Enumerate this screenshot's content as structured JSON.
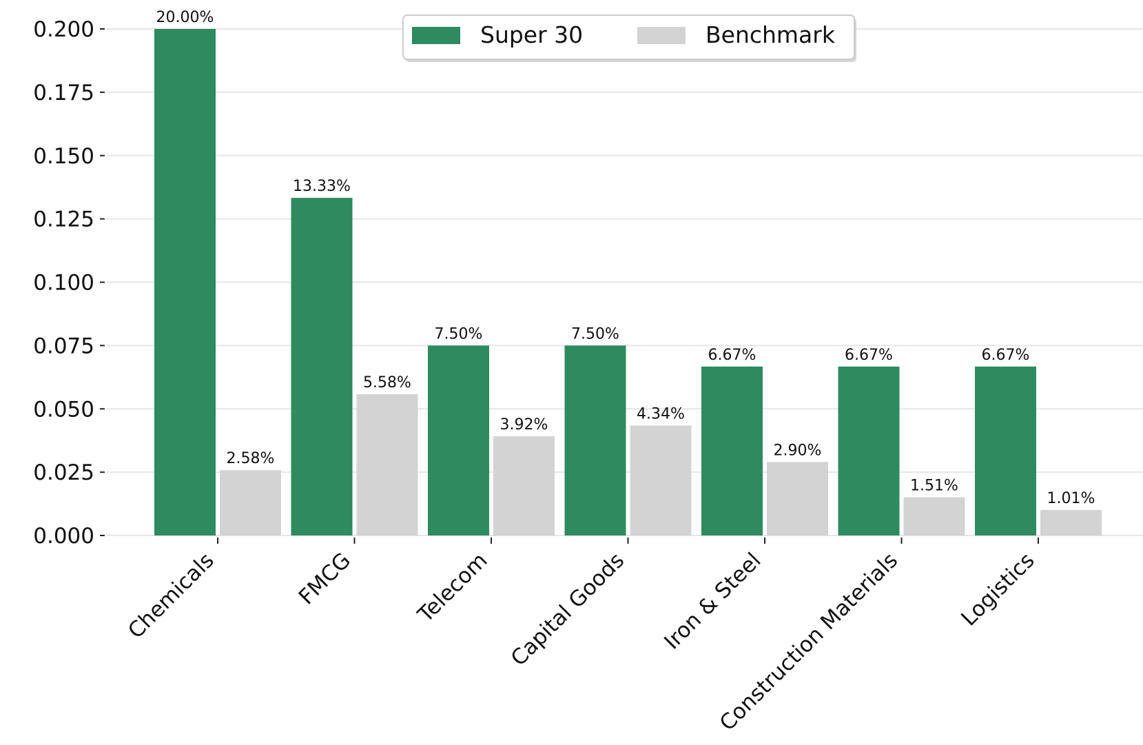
{
  "chart_data": {
    "type": "bar",
    "categories": [
      "Chemicals",
      "FMCG",
      "Telecom",
      "Capital Goods",
      "Iron & Steel",
      "Construction Materials",
      "Logistics"
    ],
    "series": [
      {
        "name": "Super 30",
        "color": "#2e8a5f",
        "values": [
          0.2,
          0.1333,
          0.075,
          0.075,
          0.0667,
          0.0667,
          0.0667
        ],
        "labels": [
          "20.00%",
          "13.33%",
          "7.50%",
          "7.50%",
          "6.67%",
          "6.67%",
          "6.67%"
        ]
      },
      {
        "name": "Benchmark",
        "color": "#d3d3d3",
        "values": [
          0.0258,
          0.0558,
          0.0392,
          0.0434,
          0.029,
          0.0151,
          0.0101
        ],
        "labels": [
          "2.58%",
          "5.58%",
          "3.92%",
          "4.34%",
          "2.90%",
          "1.51%",
          "1.01%"
        ]
      }
    ],
    "yticks": [
      "0.000",
      "0.025",
      "0.050",
      "0.075",
      "0.100",
      "0.125",
      "0.150",
      "0.175",
      "0.200"
    ],
    "ylim": [
      0,
      0.2
    ],
    "grid": "horizontal",
    "legend": "top-center"
  }
}
